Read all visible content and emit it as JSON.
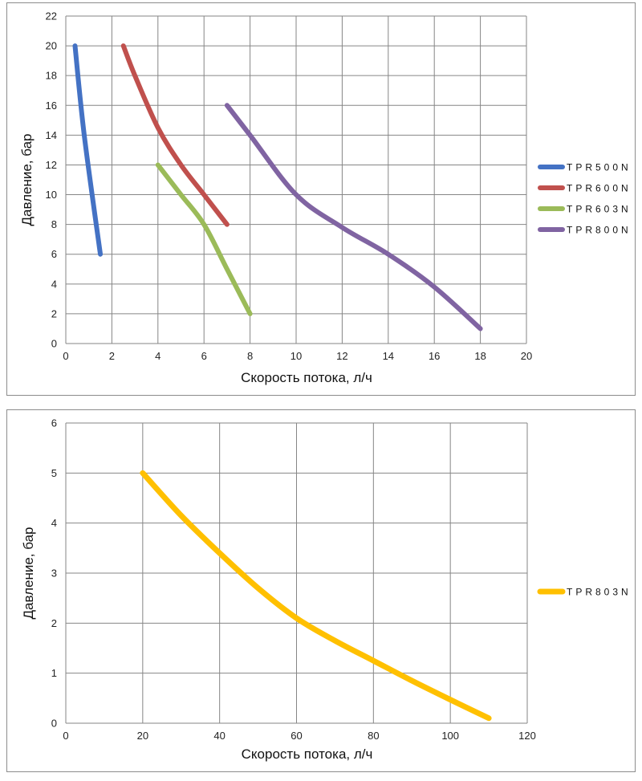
{
  "chart_data": [
    {
      "type": "line",
      "xlabel": "Скорость потока, л/ч",
      "ylabel": "Давление, бар",
      "xlim": [
        0,
        20
      ],
      "ylim": [
        0,
        22
      ],
      "xticks": [
        0,
        2,
        4,
        6,
        8,
        10,
        12,
        14,
        16,
        18,
        20
      ],
      "yticks": [
        0,
        2,
        4,
        6,
        8,
        10,
        12,
        14,
        16,
        18,
        20,
        22
      ],
      "grid": true,
      "legend_position": "right",
      "series": [
        {
          "name": "TPR500N",
          "color": "#4472c4",
          "x": [
            0.4,
            0.8,
            1.5
          ],
          "y": [
            20,
            14,
            6
          ]
        },
        {
          "name": "TPR600N",
          "color": "#c0504d",
          "x": [
            2.5,
            3.0,
            4.0,
            5.0,
            6.0,
            7.0
          ],
          "y": [
            20,
            18,
            14.5,
            12,
            10,
            8
          ]
        },
        {
          "name": "TPR603N",
          "color": "#9bbb59",
          "x": [
            4.0,
            5.0,
            6.0,
            7.0,
            8.0
          ],
          "y": [
            12,
            10,
            8,
            5,
            2
          ]
        },
        {
          "name": "TPR800N",
          "color": "#8064a2",
          "x": [
            7.0,
            8.0,
            10.0,
            12.0,
            14.0,
            16.0,
            18.0
          ],
          "y": [
            16,
            14,
            10,
            7.8,
            6,
            3.8,
            1
          ]
        }
      ]
    },
    {
      "type": "line",
      "xlabel": "Скорость потока, л/ч",
      "ylabel": "Давление, бар",
      "xlim": [
        0,
        120
      ],
      "ylim": [
        0,
        6
      ],
      "xticks": [
        0,
        20,
        40,
        60,
        80,
        100,
        120
      ],
      "yticks": [
        0,
        1,
        2,
        3,
        4,
        5,
        6
      ],
      "grid": true,
      "legend_position": "right",
      "series": [
        {
          "name": "TPR803N",
          "color": "#ffc000",
          "x": [
            20,
            30,
            40,
            50,
            60,
            70,
            80,
            90,
            100,
            110
          ],
          "y": [
            5,
            4.15,
            3.4,
            2.7,
            2.1,
            1.65,
            1.25,
            0.85,
            0.47,
            0.1
          ]
        }
      ]
    }
  ]
}
